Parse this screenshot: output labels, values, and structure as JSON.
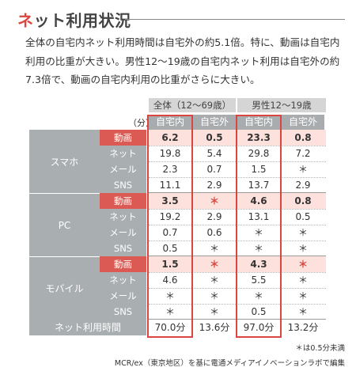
{
  "title": {
    "accent": "ネ",
    "rest": "ット利用状況"
  },
  "lead": "全体の自宅内ネット利用時間は自宅外の約5.1倍。特に、動画は自宅内利用の比重が大きい。男性12～19歳の自宅内ネット利用は自宅外の約7.3倍で、動画の自宅内利用の比重がさらに大きい。",
  "table": {
    "unit": "（分）",
    "groups": [
      "全体（12～69歳）",
      "男性12～19歳"
    ],
    "columns": [
      "自宅内",
      "自宅外",
      "自宅内",
      "自宅外"
    ],
    "categories": [
      {
        "label": "スマホ",
        "rows": [
          {
            "label": "動画",
            "values": [
              "6.2",
              "0.5",
              "23.3",
              "0.8"
            ]
          },
          {
            "label": "ネット",
            "values": [
              "19.8",
              "5.4",
              "29.8",
              "7.2"
            ]
          },
          {
            "label": "メール",
            "values": [
              "2.3",
              "0.7",
              "1.5",
              "＊"
            ]
          },
          {
            "label": "SNS",
            "values": [
              "11.1",
              "2.9",
              "13.7",
              "2.9"
            ]
          }
        ]
      },
      {
        "label": "PC",
        "rows": [
          {
            "label": "動画",
            "values": [
              "3.5",
              "＊",
              "4.6",
              "0.8"
            ]
          },
          {
            "label": "ネット",
            "values": [
              "19.2",
              "2.9",
              "13.1",
              "0.5"
            ]
          },
          {
            "label": "メール",
            "values": [
              "0.7",
              "0.6",
              "＊",
              "＊"
            ]
          },
          {
            "label": "SNS",
            "values": [
              "0.5",
              "＊",
              "＊",
              "＊"
            ]
          }
        ]
      },
      {
        "label": "モバイル",
        "rows": [
          {
            "label": "動画",
            "values": [
              "1.5",
              "＊",
              "4.3",
              "＊"
            ]
          },
          {
            "label": "ネット",
            "values": [
              "4.6",
              "＊",
              "5.5",
              "＊"
            ]
          },
          {
            "label": "メール",
            "values": [
              "＊",
              "＊",
              "＊",
              "＊"
            ]
          },
          {
            "label": "SNS",
            "values": [
              "＊",
              "＊",
              "0.5",
              "＊"
            ]
          }
        ]
      }
    ],
    "total": {
      "label": "ネット利用時間",
      "values": [
        "70.0分",
        "13.6分",
        "97.0分",
        "13.2分"
      ]
    }
  },
  "notes": {
    "footnote": "＊は0.5分未満",
    "source": "MCR/ex（東京地区）を基に電通メディアイノベーションラボで編集"
  }
}
